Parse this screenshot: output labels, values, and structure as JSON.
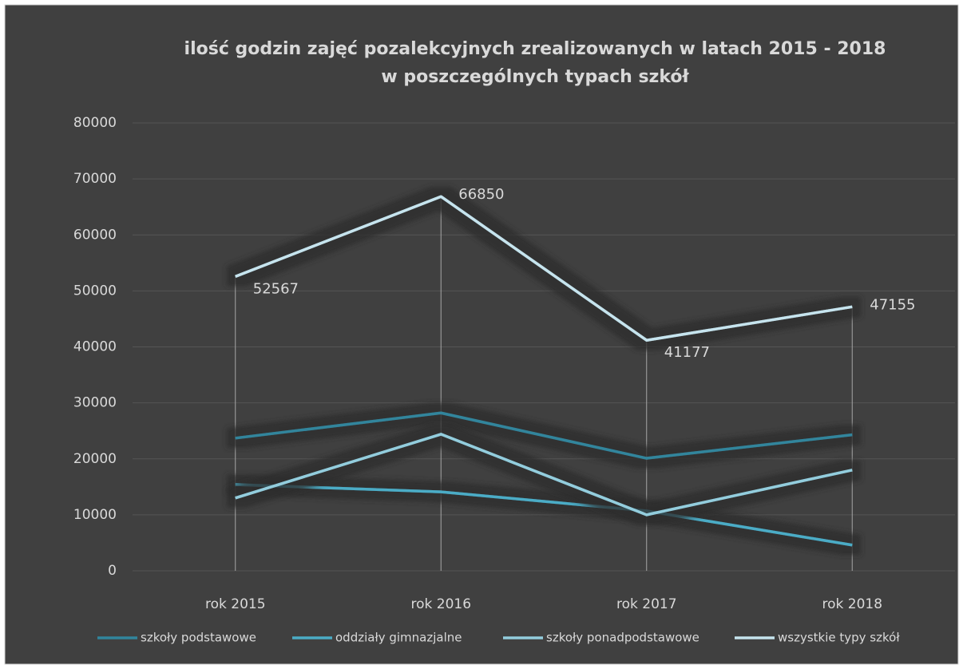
{
  "chart_data": {
    "type": "line",
    "title": [
      "ilość godzin zajęć pozalekcyjnych zrealizowanych w latach 2015 - 2018",
      "w poszczególnych typach szkół"
    ],
    "categories": [
      "rok 2015",
      "rok 2016",
      "rok 2017",
      "rok 2018"
    ],
    "series": [
      {
        "name": "szkoły podstawowe",
        "color": "#31859c",
        "values": [
          23700,
          28200,
          20100,
          24300
        ]
      },
      {
        "name": "oddziały gimnazjalne",
        "color": "#4bacc6",
        "values": [
          15400,
          14100,
          10700,
          4600
        ]
      },
      {
        "name": "szkoły ponadpodstawowe",
        "color": "#93cddd",
        "values": [
          13000,
          24400,
          10000,
          18000
        ]
      },
      {
        "name": "wszystkie typy szkół",
        "color": "#c6e4ee",
        "values": [
          52567,
          66850,
          41177,
          47155
        ],
        "data_labels": true
      }
    ],
    "ylim": [
      0,
      80000
    ],
    "yticks": [
      0,
      10000,
      20000,
      30000,
      40000,
      50000,
      60000,
      70000,
      80000
    ],
    "grid": true,
    "drop_lines": true,
    "legend": "bottom"
  }
}
